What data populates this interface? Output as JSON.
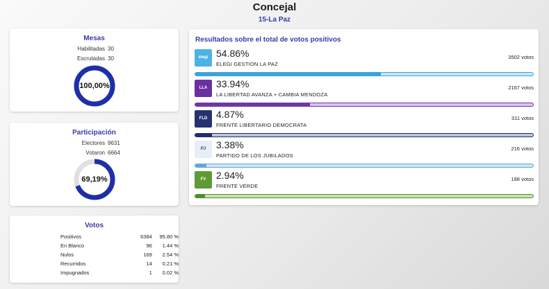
{
  "header": {
    "title": "Concejal",
    "subtitle": "15-La Paz"
  },
  "mesas": {
    "title": "Mesas",
    "habilitadas_label": "Habilitadas",
    "habilitadas": "30",
    "escrutadas_label": "Escrutadas",
    "escrutadas": "30",
    "percent_label": "100,00%",
    "percent": 1.0,
    "color": "#1f2fa8",
    "track_color": "#b9b9e6"
  },
  "participacion": {
    "title": "Participación",
    "electores_label": "Electores",
    "electores": "9631",
    "votaron_label": "Votaron",
    "votaron": "6664",
    "percent_label": "69,19%",
    "percent": 0.6919,
    "color": "#1f2fa8",
    "track_color": "#e0e0e0"
  },
  "votos": {
    "title": "Votos",
    "rows": [
      {
        "label": "Positivos",
        "count": "6384",
        "percent": "95.80 %"
      },
      {
        "label": "En Blanco",
        "count": "96",
        "percent": "1.44 %"
      },
      {
        "label": "Nulos",
        "count": "169",
        "percent": "2.54 %"
      },
      {
        "label": "Recurridos",
        "count": "14",
        "percent": "0.21 %"
      },
      {
        "label": "Impugnados",
        "count": "1",
        "percent": "0.02 %"
      }
    ]
  },
  "results": {
    "title": "Resultados sobre el total de votos positivos",
    "parties": [
      {
        "percent_label": "54.86%",
        "share": 0.5486,
        "name": "ELEGI GESTION LA PAZ",
        "votes": "3502 votos",
        "color": "#3aa3dc",
        "track": "#c9e7f7",
        "logo_bg": "#4bb2e6",
        "logo_text": "elegí",
        "logo": "elegi-logo"
      },
      {
        "percent_label": "33.94%",
        "share": 0.3394,
        "name": "LA LIBERTAD AVANZA + CAMBIA MENDOZA",
        "votes": "2167 votos",
        "color": "#6f35a8",
        "track": "#d8c4ec",
        "logo_bg": "#6a2fa0",
        "logo_text": "LLA",
        "logo": "libertad-avanza-logo"
      },
      {
        "percent_label": "4.87%",
        "share": 0.0487,
        "name": "FRENTE LIBERTARIO DEMOCRATA",
        "votes": "311 votos",
        "color": "#1d2f6f",
        "track": "#b9c4dc",
        "logo_bg": "#24336f",
        "logo_text": "FLD",
        "logo": "frente-libertario-logo"
      },
      {
        "percent_label": "3.38%",
        "share": 0.0338,
        "name": "PARTIDO DE LOS JUBILADOS",
        "votes": "216 votos",
        "color": "#5fa9dd",
        "track": "#cfe5f5",
        "logo_bg": "#e8eef6",
        "logo_text": "PJ",
        "logo": "partido-jubilados-logo"
      },
      {
        "percent_label": "2.94%",
        "share": 0.0294,
        "name": "FRENTE VERDE",
        "votes": "188 votos",
        "color": "#4f8f2b",
        "track": "#c8e2b0",
        "logo_bg": "#5f9a34",
        "logo_text": "FV",
        "logo": "frente-verde-logo"
      }
    ]
  }
}
